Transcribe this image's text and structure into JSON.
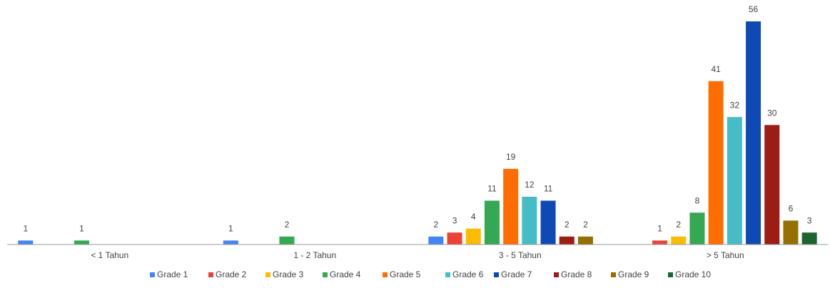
{
  "chart_data": {
    "type": "bar",
    "categories": [
      "< 1 Tahun",
      "1 - 2 Tahun",
      "3 - 5 Tahun",
      "> 5 Tahun"
    ],
    "series": [
      {
        "name": "Grade 1",
        "color": "#4285f4",
        "values": [
          1,
          1,
          2,
          null
        ]
      },
      {
        "name": "Grade 2",
        "color": "#ea4335",
        "values": [
          null,
          null,
          3,
          1
        ]
      },
      {
        "name": "Grade 3",
        "color": "#fbbc04",
        "values": [
          null,
          null,
          4,
          2
        ]
      },
      {
        "name": "Grade 4",
        "color": "#34a853",
        "values": [
          1,
          2,
          11,
          8
        ]
      },
      {
        "name": "Grade 5",
        "color": "#ff6d01",
        "values": [
          null,
          null,
          19,
          41
        ]
      },
      {
        "name": "Grade 6",
        "color": "#46bdc6",
        "values": [
          null,
          null,
          12,
          32
        ]
      },
      {
        "name": "Grade 7",
        "color": "#0f4ab4",
        "values": [
          null,
          null,
          11,
          56
        ]
      },
      {
        "name": "Grade 8",
        "color": "#9c1c16",
        "values": [
          null,
          null,
          2,
          30
        ]
      },
      {
        "name": "Grade 9",
        "color": "#937000",
        "values": [
          null,
          null,
          2,
          6
        ]
      },
      {
        "name": "Grade 10",
        "color": "#1b6630",
        "values": [
          null,
          null,
          null,
          3
        ]
      }
    ],
    "ylim": [
      0,
      56
    ],
    "legend": "bottom"
  }
}
